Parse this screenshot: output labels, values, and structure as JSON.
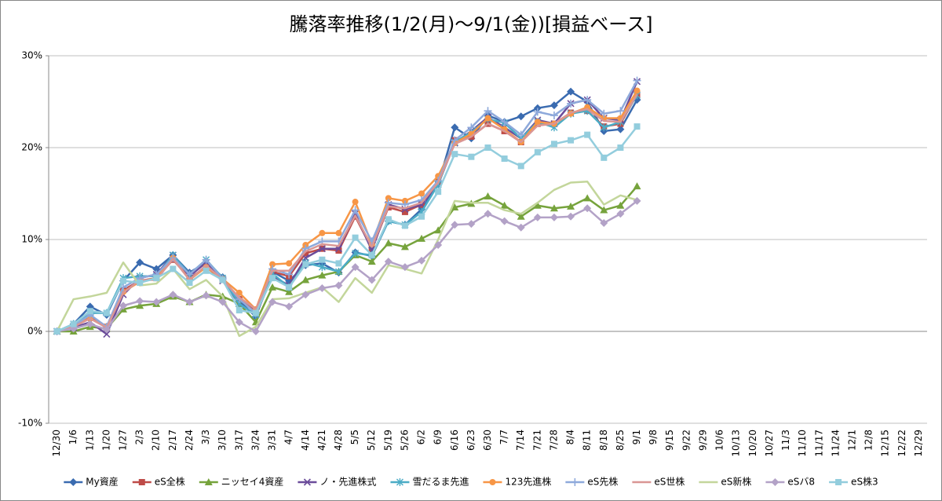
{
  "chart_data": {
    "type": "line",
    "title": "騰落率推移(1/2(月)～9/1(金))[損益ベース]",
    "categories": [
      "12/30",
      "1/6",
      "1/13",
      "1/20",
      "1/27",
      "2/3",
      "2/10",
      "2/17",
      "2/24",
      "3/3",
      "3/10",
      "3/17",
      "3/24",
      "3/31",
      "4/7",
      "4/14",
      "4/21",
      "4/28",
      "5/5",
      "5/12",
      "5/19",
      "5/26",
      "6/2",
      "6/9",
      "6/16",
      "6/23",
      "6/30",
      "7/7",
      "7/14",
      "7/21",
      "7/28",
      "8/4",
      "8/11",
      "8/18",
      "8/25",
      "9/1",
      "9/8",
      "9/15",
      "9/22",
      "9/29",
      "10/6",
      "10/13",
      "10/20",
      "10/27",
      "11/3",
      "11/10",
      "11/17",
      "11/24",
      "12/1",
      "12/8",
      "12/15",
      "12/22",
      "12/29"
    ],
    "ylim": [
      -10,
      30
    ],
    "yticks": [
      {
        "value": -10,
        "label": "-10%"
      },
      {
        "value": 0,
        "label": "0%"
      },
      {
        "value": 10,
        "label": "10%"
      },
      {
        "value": 20,
        "label": "20%"
      },
      {
        "value": 30,
        "label": "30%"
      }
    ],
    "grid": true,
    "legend": "bottom",
    "series": [
      {
        "name": "My資産",
        "color": "#3a6bb0",
        "marker": "diamond",
        "values": [
          0,
          0.8,
          2.7,
          1.8,
          5.5,
          7.5,
          6.8,
          8.3,
          6.4,
          7.5,
          5.9,
          3.3,
          1.6,
          6.5,
          5.5,
          7.2,
          7.4,
          6.4,
          8.6,
          8.2,
          12.0,
          11.6,
          13.3,
          16.0,
          22.2,
          21.0,
          23.5,
          22.8,
          23.4,
          24.3,
          24.6,
          26.1,
          25.0,
          21.8,
          22.0,
          25.2,
          null,
          null,
          null,
          null,
          null,
          null,
          null,
          null,
          null,
          null,
          null,
          null,
          null,
          null,
          null,
          null,
          null
        ]
      },
      {
        "name": "eS全株",
        "color": "#be4b48",
        "marker": "square",
        "values": [
          0,
          0.5,
          1.5,
          0.5,
          4.5,
          5.5,
          5.8,
          7.8,
          5.8,
          7.0,
          5.6,
          3.5,
          2.2,
          6.5,
          6.0,
          8.5,
          9.0,
          8.8,
          12.5,
          9.0,
          13.5,
          13.0,
          13.8,
          16.3,
          20.8,
          21.2,
          22.6,
          21.8,
          20.6,
          22.6,
          22.6,
          23.8,
          24.0,
          22.3,
          22.6,
          25.8,
          null,
          null,
          null,
          null,
          null,
          null,
          null,
          null,
          null,
          null,
          null,
          null,
          null,
          null,
          null,
          null,
          null
        ]
      },
      {
        "name": "ニッセイ4資産",
        "color": "#76a33c",
        "marker": "triangle",
        "values": [
          0,
          0.0,
          0.5,
          0.3,
          2.4,
          2.8,
          3.0,
          3.8,
          3.2,
          4.0,
          3.8,
          3.0,
          1.0,
          4.8,
          4.3,
          5.6,
          6.1,
          6.5,
          8.3,
          7.6,
          9.6,
          9.2,
          10.1,
          11.0,
          13.5,
          13.9,
          14.7,
          13.7,
          12.5,
          13.7,
          13.4,
          13.6,
          14.5,
          13.2,
          13.7,
          15.8,
          null,
          null,
          null,
          null,
          null,
          null,
          null,
          null,
          null,
          null,
          null,
          null,
          null,
          null,
          null,
          null,
          null
        ]
      },
      {
        "name": "ノ・先進株式",
        "color": "#6b4c9a",
        "marker": "x",
        "values": [
          0,
          0.4,
          1.0,
          -0.3,
          4.0,
          5.8,
          6.2,
          8.3,
          6.0,
          7.5,
          5.5,
          3.0,
          1.8,
          6.0,
          5.0,
          8.0,
          9.0,
          9.0,
          12.8,
          8.8,
          13.8,
          13.3,
          13.8,
          16.0,
          20.5,
          21.8,
          23.3,
          22.2,
          21.0,
          23.0,
          22.6,
          24.8,
          25.2,
          23.2,
          23.0,
          27.2,
          null,
          null,
          null,
          null,
          null,
          null,
          null,
          null,
          null,
          null,
          null,
          null,
          null,
          null,
          null,
          null,
          null
        ]
      },
      {
        "name": "雪だるま先進",
        "color": "#4bacc6",
        "marker": "star",
        "values": [
          0,
          0.8,
          2.0,
          2.0,
          5.8,
          6.0,
          6.0,
          8.3,
          6.2,
          7.8,
          5.8,
          3.0,
          1.8,
          6.3,
          4.8,
          7.5,
          7.0,
          6.5,
          8.5,
          8.3,
          12.0,
          11.6,
          13.0,
          16.0,
          20.6,
          21.7,
          23.1,
          22.7,
          21.0,
          22.8,
          22.2,
          23.7,
          24.0,
          22.2,
          22.8,
          25.7,
          null,
          null,
          null,
          null,
          null,
          null,
          null,
          null,
          null,
          null,
          null,
          null,
          null,
          null,
          null,
          null,
          null
        ]
      },
      {
        "name": "123先進株",
        "color": "#f79646",
        "marker": "circle",
        "values": [
          0,
          0.7,
          1.4,
          0.5,
          4.3,
          5.4,
          5.8,
          8.0,
          5.6,
          7.0,
          5.7,
          4.2,
          2.4,
          7.3,
          7.4,
          9.4,
          10.7,
          10.7,
          14.1,
          9.5,
          14.5,
          14.2,
          15.0,
          16.9,
          20.5,
          21.5,
          23.2,
          22.0,
          20.6,
          22.8,
          22.6,
          23.7,
          24.4,
          23.2,
          23.2,
          26.2,
          null,
          null,
          null,
          null,
          null,
          null,
          null,
          null,
          null,
          null,
          null,
          null,
          null,
          null,
          null,
          null,
          null
        ]
      },
      {
        "name": "eS先株",
        "color": "#8ea9db",
        "marker": "plus",
        "values": [
          0,
          0.6,
          1.8,
          0.5,
          4.8,
          5.8,
          6.2,
          8.0,
          6.2,
          7.8,
          5.7,
          3.5,
          2.0,
          6.8,
          6.2,
          9.0,
          9.8,
          9.8,
          13.2,
          9.8,
          14.0,
          13.8,
          14.3,
          16.4,
          20.8,
          22.2,
          24.0,
          22.8,
          21.4,
          23.9,
          23.5,
          24.8,
          25.2,
          23.7,
          24.0,
          27.3,
          null,
          null,
          null,
          null,
          null,
          null,
          null,
          null,
          null,
          null,
          null,
          null,
          null,
          null,
          null,
          null,
          null
        ]
      },
      {
        "name": "eS世株",
        "color": "#da9694",
        "marker": "none",
        "values": [
          0,
          0.5,
          1.4,
          0.4,
          4.2,
          5.6,
          5.6,
          7.9,
          5.6,
          7.2,
          5.6,
          3.7,
          2.4,
          6.6,
          6.6,
          8.7,
          9.5,
          9.3,
          12.6,
          9.2,
          13.6,
          13.4,
          14.0,
          16.2,
          20.4,
          21.2,
          22.6,
          21.8,
          20.6,
          22.4,
          22.6,
          23.8,
          24.2,
          22.9,
          22.8,
          25.8,
          null,
          null,
          null,
          null,
          null,
          null,
          null,
          null,
          null,
          null,
          null,
          null,
          null,
          null,
          null,
          null,
          null
        ]
      },
      {
        "name": "eS新株",
        "color": "#c3d69b",
        "marker": "none",
        "values": [
          0,
          3.5,
          3.8,
          4.2,
          7.5,
          5.0,
          5.2,
          6.8,
          4.6,
          5.6,
          3.8,
          -0.5,
          0.5,
          3.5,
          3.6,
          4.2,
          4.8,
          3.2,
          5.8,
          4.2,
          7.2,
          6.8,
          6.3,
          10.0,
          14.2,
          14.0,
          14.0,
          13.2,
          12.8,
          14.0,
          15.4,
          16.2,
          16.3,
          13.8,
          14.8,
          14.3,
          null,
          null,
          null,
          null,
          null,
          null,
          null,
          null,
          null,
          null,
          null,
          null,
          null,
          null,
          null,
          null,
          null
        ]
      },
      {
        "name": "eSバ8",
        "color": "#b3a2c7",
        "marker": "diamond",
        "values": [
          0,
          0.3,
          0.8,
          0.2,
          2.8,
          3.3,
          3.2,
          4.0,
          3.2,
          3.9,
          3.2,
          1.0,
          0.0,
          3.2,
          2.7,
          4.0,
          4.7,
          5.0,
          7.0,
          5.6,
          7.6,
          7.0,
          7.7,
          9.4,
          11.6,
          11.7,
          12.8,
          12.0,
          11.3,
          12.4,
          12.4,
          12.5,
          13.4,
          11.8,
          12.8,
          14.2,
          null,
          null,
          null,
          null,
          null,
          null,
          null,
          null,
          null,
          null,
          null,
          null,
          null,
          null,
          null,
          null,
          null
        ]
      },
      {
        "name": "eS株3",
        "color": "#93cddd",
        "marker": "square",
        "values": [
          0,
          0.8,
          2.2,
          2.0,
          5.5,
          5.3,
          5.8,
          6.8,
          5.3,
          6.6,
          5.6,
          2.3,
          2.0,
          5.8,
          4.8,
          7.3,
          7.8,
          7.4,
          10.2,
          8.3,
          12.2,
          11.5,
          12.5,
          15.2,
          19.3,
          19.0,
          20.0,
          18.8,
          18.0,
          19.5,
          20.4,
          20.8,
          21.4,
          18.9,
          20.0,
          22.3,
          null,
          null,
          null,
          null,
          null,
          null,
          null,
          null,
          null,
          null,
          null,
          null,
          null,
          null,
          null,
          null,
          null
        ]
      }
    ]
  }
}
